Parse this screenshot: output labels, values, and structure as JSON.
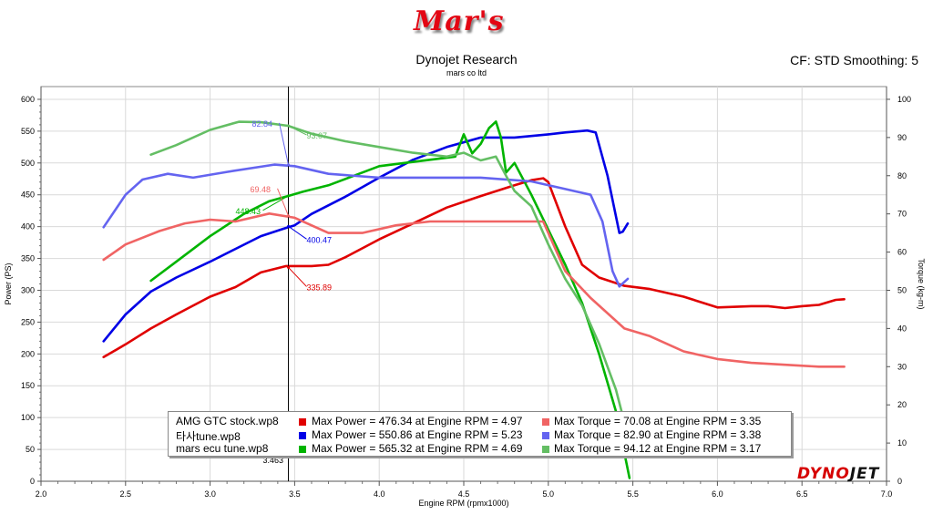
{
  "header": {
    "logo_text": "Mar's",
    "title": "Dynojet Research",
    "subtitle": "mars co ltd",
    "cf_label": "CF: STD Smoothing: 5"
  },
  "brand": {
    "part1": "DYNO",
    "part2": "JET"
  },
  "chart_data": {
    "type": "line",
    "xlabel": "Engine RPM (rpmx1000)",
    "ylabel_left": "Power (PS)",
    "ylabel_right": "Torque (kg-m)",
    "xlim": [
      2.0,
      7.0
    ],
    "ylim_left": [
      0,
      620
    ],
    "ylim_right": [
      0,
      103.33
    ],
    "x_ticks": [
      "2.0",
      "2.5",
      "3.0",
      "3.5",
      "4.0",
      "4.5",
      "5.0",
      "5.5",
      "6.0",
      "6.5",
      "7.0"
    ],
    "y_ticks_left": [
      "0",
      "50",
      "100",
      "150",
      "200",
      "250",
      "300",
      "350",
      "400",
      "450",
      "500",
      "550",
      "600"
    ],
    "y_ticks_right": [
      "0",
      "10",
      "20",
      "30",
      "40",
      "50",
      "60",
      "70",
      "80",
      "90",
      "100"
    ],
    "grid": true,
    "cursor": {
      "x": 3.463,
      "label": "3.463"
    },
    "series": [
      {
        "name": "AMG GTC stock.wp8",
        "measure": "power",
        "axis": "left",
        "color": "#e00000",
        "x": [
          2.37,
          2.5,
          2.65,
          2.8,
          3.0,
          3.15,
          3.3,
          3.45,
          3.5,
          3.6,
          3.7,
          3.8,
          4.0,
          4.2,
          4.4,
          4.6,
          4.8,
          4.9,
          4.97,
          5.0,
          5.1,
          5.2,
          5.3,
          5.45,
          5.6,
          5.8,
          6.0,
          6.2,
          6.3,
          6.4,
          6.5,
          6.6,
          6.7,
          6.75
        ],
        "y": [
          195,
          215,
          240,
          262,
          290,
          305,
          328,
          338,
          338,
          338,
          340,
          352,
          380,
          405,
          430,
          448,
          465,
          473,
          476,
          470,
          400,
          340,
          320,
          307,
          302,
          290,
          273,
          275,
          275,
          272,
          275,
          277,
          285,
          286
        ]
      },
      {
        "name": "타사tune.wp8",
        "measure": "power",
        "axis": "left",
        "color": "#0000e6",
        "x": [
          2.37,
          2.5,
          2.65,
          2.8,
          3.0,
          3.15,
          3.3,
          3.45,
          3.5,
          3.6,
          3.8,
          4.0,
          4.2,
          4.4,
          4.6,
          4.8,
          5.0,
          5.1,
          5.23,
          5.28,
          5.35,
          5.42,
          5.44,
          5.47
        ],
        "y": [
          220,
          262,
          298,
          320,
          345,
          365,
          385,
          398,
          402,
          420,
          447,
          477,
          505,
          525,
          540,
          540,
          545,
          548,
          551,
          548,
          480,
          390,
          392,
          405
        ]
      },
      {
        "name": "mars ecu tune.wp8",
        "measure": "power",
        "axis": "left",
        "color": "#00b400",
        "x": [
          2.65,
          2.8,
          3.0,
          3.2,
          3.35,
          3.46,
          3.55,
          3.7,
          3.85,
          4.0,
          4.15,
          4.3,
          4.45,
          4.5,
          4.55,
          4.6,
          4.65,
          4.69,
          4.72,
          4.75,
          4.8,
          4.9,
          5.0,
          5.1,
          5.2,
          5.3,
          5.4,
          5.48
        ],
        "y": [
          315,
          345,
          385,
          420,
          440,
          448,
          455,
          465,
          480,
          495,
          500,
          505,
          510,
          545,
          515,
          530,
          555,
          565,
          540,
          485,
          500,
          450,
          395,
          340,
          280,
          200,
          110,
          5
        ]
      },
      {
        "name": "AMG GTC stock.wp8",
        "measure": "torque",
        "axis": "right",
        "color": "#f06464",
        "x": [
          2.37,
          2.5,
          2.7,
          2.85,
          3.0,
          3.15,
          3.35,
          3.5,
          3.7,
          3.9,
          4.1,
          4.3,
          4.5,
          4.7,
          4.9,
          4.97,
          5.1,
          5.25,
          5.45,
          5.6,
          5.8,
          6.0,
          6.2,
          6.4,
          6.6,
          6.75
        ],
        "y": [
          58,
          62,
          65.5,
          67.5,
          68.5,
          68,
          70.08,
          69,
          65,
          65,
          67,
          68,
          68,
          68,
          68,
          68,
          55,
          48,
          40,
          38,
          34,
          32,
          31,
          30.5,
          30,
          30
        ]
      },
      {
        "name": "타사tune.wp8",
        "measure": "torque",
        "axis": "right",
        "color": "#6464f0",
        "x": [
          2.37,
          2.5,
          2.6,
          2.75,
          2.9,
          3.1,
          3.38,
          3.5,
          3.7,
          4.0,
          4.3,
          4.6,
          4.9,
          5.1,
          5.25,
          5.32,
          5.38,
          5.42,
          5.47
        ],
        "y": [
          66.5,
          75,
          79,
          80.5,
          79.5,
          81,
          82.9,
          82.5,
          80.5,
          79.5,
          79.5,
          79.5,
          78.5,
          76.5,
          75,
          68,
          55,
          51,
          53
        ]
      },
      {
        "name": "mars ecu tune.wp8",
        "measure": "torque",
        "axis": "right",
        "color": "#64be64",
        "x": [
          2.65,
          2.8,
          3.0,
          3.17,
          3.3,
          3.46,
          3.6,
          3.8,
          4.0,
          4.2,
          4.4,
          4.5,
          4.6,
          4.69,
          4.75,
          4.8,
          4.9,
          5.0,
          5.1,
          5.2,
          5.3,
          5.4,
          5.47
        ],
        "y": [
          85.5,
          88,
          92,
          94.12,
          94,
          93.07,
          91,
          89,
          87.5,
          86,
          85,
          86,
          84,
          85,
          80,
          76,
          72,
          62,
          53,
          46,
          36,
          24,
          12
        ]
      }
    ],
    "annotations": [
      {
        "label": "335.89",
        "x": 3.463,
        "y": 335.89,
        "axis": "left",
        "color": "#e00000"
      },
      {
        "label": "400.47",
        "x": 3.463,
        "y": 400.47,
        "axis": "left",
        "color": "#0000e6"
      },
      {
        "label": "448.43",
        "x": 3.463,
        "y": 448.43,
        "axis": "left",
        "color": "#00b400"
      },
      {
        "label": "69.48",
        "x": 3.463,
        "y": 69.48,
        "axis": "right",
        "color": "#f06464"
      },
      {
        "label": "82.84",
        "x": 3.463,
        "y": 82.84,
        "axis": "right",
        "color": "#6464f0"
      },
      {
        "label": "93.07",
        "x": 3.463,
        "y": 93.07,
        "axis": "right",
        "color": "#64be64"
      }
    ]
  },
  "legend": {
    "rows": [
      {
        "file": "AMG GTC stock.wp8",
        "power_color": "#e00000",
        "power_text": "Max Power = 476.34 at Engine RPM = 4.97",
        "torque_color": "#f06464",
        "torque_text": "Max Torque = 70.08 at Engine RPM = 3.35"
      },
      {
        "file": "타사tune.wp8",
        "power_color": "#0000e6",
        "power_text": "Max Power = 550.86 at Engine RPM = 5.23",
        "torque_color": "#6464f0",
        "torque_text": "Max Torque = 82.90 at Engine RPM = 3.38"
      },
      {
        "file": "mars ecu tune.wp8",
        "power_color": "#00b400",
        "power_text": "Max Power = 565.32 at Engine RPM = 4.69",
        "torque_color": "#64be64",
        "torque_text": "Max Torque = 94.12 at Engine RPM = 3.17"
      }
    ]
  }
}
